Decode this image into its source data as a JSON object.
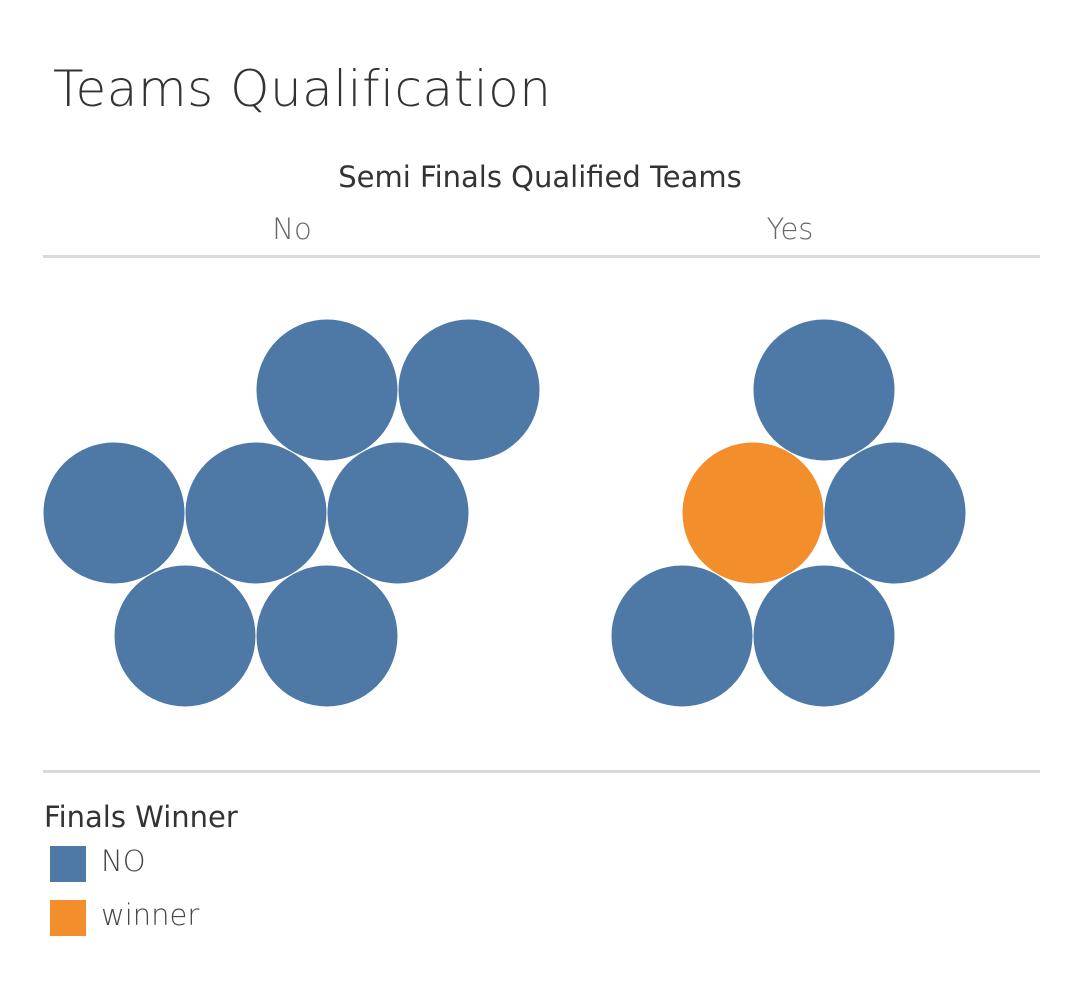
{
  "title": "Teams Qualification",
  "chart_data": {
    "type": "packed-bubbles",
    "subtitle": "Semi Finals Qualified Teams",
    "columns": [
      "No",
      "Yes"
    ],
    "groups": [
      {
        "column": "No",
        "counts": {
          "NO": 7,
          "winner": 0
        }
      },
      {
        "column": "Yes",
        "counts": {
          "NO": 4,
          "winner": 1
        }
      }
    ],
    "legend": {
      "title": "Finals Winner",
      "placement": "bottom-left",
      "items": [
        {
          "label": "NO",
          "color": "#4e79a7"
        },
        {
          "label": "winner",
          "color": "#f28e2b"
        }
      ]
    }
  }
}
